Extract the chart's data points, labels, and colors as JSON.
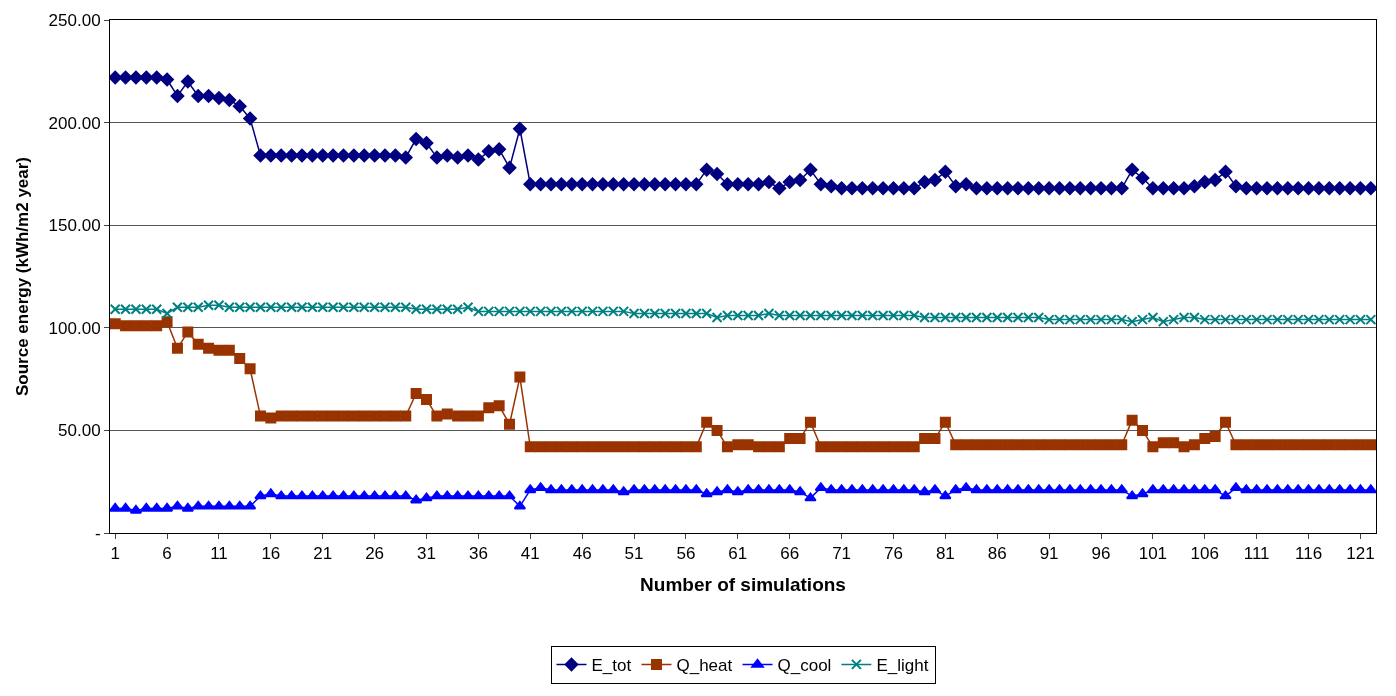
{
  "chart_data": {
    "type": "line",
    "xlabel": "Number of simulations",
    "ylabel": "Source energy (kWh/m2 year)",
    "x": [
      1,
      2,
      3,
      4,
      5,
      6,
      7,
      8,
      9,
      10,
      11,
      12,
      13,
      14,
      15,
      16,
      17,
      18,
      19,
      20,
      21,
      22,
      23,
      24,
      25,
      26,
      27,
      28,
      29,
      30,
      31,
      32,
      33,
      34,
      35,
      36,
      37,
      38,
      39,
      40,
      41,
      42,
      43,
      44,
      45,
      46,
      47,
      48,
      49,
      50,
      51,
      52,
      53,
      54,
      55,
      56,
      57,
      58,
      59,
      60,
      61,
      62,
      63,
      64,
      65,
      66,
      67,
      68,
      69,
      70,
      71,
      72,
      73,
      74,
      75,
      76,
      77,
      78,
      79,
      80,
      81,
      82,
      83,
      84,
      85,
      86,
      87,
      88,
      89,
      90,
      91,
      92,
      93,
      94,
      95,
      96,
      97,
      98,
      99,
      100,
      101,
      102,
      103,
      104,
      105,
      106,
      107,
      108,
      109,
      110,
      111,
      112,
      113,
      114,
      115,
      116,
      117,
      118,
      119,
      120,
      121,
      122
    ],
    "xlim": [
      0.5,
      122.5
    ],
    "xticks": [
      1,
      6,
      11,
      16,
      21,
      26,
      31,
      36,
      41,
      46,
      51,
      56,
      61,
      66,
      71,
      76,
      81,
      86,
      91,
      96,
      101,
      106,
      111,
      116,
      121
    ],
    "ylim": [
      0,
      250
    ],
    "yticks": [
      {
        "value": 0,
        "label": "-"
      },
      {
        "value": 50,
        "label": "50.00"
      },
      {
        "value": 100,
        "label": "100.00"
      },
      {
        "value": 150,
        "label": "150.00"
      },
      {
        "value": 200,
        "label": "200.00"
      },
      {
        "value": 250,
        "label": "250.00"
      }
    ],
    "grid": "y",
    "legend": "bottom",
    "series": [
      {
        "name": "E_tot",
        "color": "#000080",
        "marker": "diamond",
        "values": [
          222,
          222,
          222,
          222,
          222,
          221,
          213,
          220,
          213,
          213,
          212,
          211,
          208,
          202,
          184,
          184,
          184,
          184,
          184,
          184,
          184,
          184,
          184,
          184,
          184,
          184,
          184,
          184,
          183,
          192,
          190,
          183,
          184,
          183,
          184,
          182,
          186,
          187,
          178,
          197,
          170,
          170,
          170,
          170,
          170,
          170,
          170,
          170,
          170,
          170,
          170,
          170,
          170,
          170,
          170,
          170,
          170,
          177,
          175,
          170,
          170,
          170,
          170,
          171,
          168,
          171,
          172,
          177,
          170,
          169,
          168,
          168,
          168,
          168,
          168,
          168,
          168,
          168,
          171,
          172,
          176,
          169,
          170,
          168,
          168,
          168,
          168,
          168,
          168,
          168,
          168,
          168,
          168,
          168,
          168,
          168,
          168,
          168,
          177,
          173,
          168,
          168,
          168,
          168,
          169,
          171,
          172,
          176,
          169,
          168,
          168,
          168,
          168,
          168,
          168,
          168,
          168,
          168,
          168,
          168,
          168,
          168
        ]
      },
      {
        "name": "Q_heat",
        "color": "#993300",
        "marker": "square",
        "values": [
          102,
          101,
          101,
          101,
          101,
          103,
          90,
          98,
          92,
          90,
          89,
          89,
          85,
          80,
          57,
          56,
          57,
          57,
          57,
          57,
          57,
          57,
          57,
          57,
          57,
          57,
          57,
          57,
          57,
          68,
          65,
          57,
          58,
          57,
          57,
          57,
          61,
          62,
          53,
          76,
          42,
          42,
          42,
          42,
          42,
          42,
          42,
          42,
          42,
          42,
          42,
          42,
          42,
          42,
          42,
          42,
          42,
          54,
          50,
          42,
          43,
          43,
          42,
          42,
          42,
          46,
          46,
          54,
          42,
          42,
          42,
          42,
          42,
          42,
          42,
          42,
          42,
          42,
          46,
          46,
          54,
          43,
          43,
          43,
          43,
          43,
          43,
          43,
          43,
          43,
          43,
          43,
          43,
          43,
          43,
          43,
          43,
          43,
          55,
          50,
          42,
          44,
          44,
          42,
          43,
          46,
          47,
          54,
          43,
          43,
          43,
          43,
          43,
          43,
          43,
          43,
          43,
          43,
          43,
          43,
          43,
          43
        ]
      },
      {
        "name": "Q_cool",
        "color": "#0000ff",
        "marker": "triangle",
        "values": [
          12,
          12,
          11,
          12,
          12,
          12,
          13,
          12,
          13,
          13,
          13,
          13,
          13,
          13,
          18,
          19,
          18,
          18,
          18,
          18,
          18,
          18,
          18,
          18,
          18,
          18,
          18,
          18,
          18,
          16,
          17,
          18,
          18,
          18,
          18,
          18,
          18,
          18,
          18,
          13,
          21,
          22,
          21,
          21,
          21,
          21,
          21,
          21,
          21,
          20,
          21,
          21,
          21,
          21,
          21,
          21,
          21,
          19,
          20,
          21,
          20,
          21,
          21,
          21,
          21,
          21,
          20,
          17,
          22,
          21,
          21,
          21,
          21,
          21,
          21,
          21,
          21,
          21,
          20,
          21,
          18,
          21,
          22,
          21,
          21,
          21,
          21,
          21,
          21,
          21,
          21,
          21,
          21,
          21,
          21,
          21,
          21,
          21,
          18,
          19,
          21,
          21,
          21,
          21,
          21,
          21,
          21,
          18,
          22,
          21,
          21,
          21,
          21,
          21,
          21,
          21,
          21,
          21,
          21,
          21,
          21,
          21
        ]
      },
      {
        "name": "E_light",
        "color": "#008080",
        "marker": "cross",
        "values": [
          109,
          109,
          109,
          109,
          109,
          107,
          110,
          110,
          110,
          111,
          111,
          110,
          110,
          110,
          110,
          110,
          110,
          110,
          110,
          110,
          110,
          110,
          110,
          110,
          110,
          110,
          110,
          110,
          110,
          109,
          109,
          109,
          109,
          109,
          110,
          108,
          108,
          108,
          108,
          108,
          108,
          108,
          108,
          108,
          108,
          108,
          108,
          108,
          108,
          108,
          107,
          107,
          107,
          107,
          107,
          107,
          107,
          107,
          105,
          106,
          106,
          106,
          106,
          107,
          106,
          106,
          106,
          106,
          106,
          106,
          106,
          106,
          106,
          106,
          106,
          106,
          106,
          106,
          105,
          105,
          105,
          105,
          105,
          105,
          105,
          105,
          105,
          105,
          105,
          105,
          104,
          104,
          104,
          104,
          104,
          104,
          104,
          104,
          103,
          104,
          105,
          103,
          104,
          105,
          105,
          104,
          104,
          104,
          104,
          104,
          104,
          104,
          104,
          104,
          104,
          104,
          104,
          104,
          104,
          104,
          104,
          104
        ]
      }
    ]
  }
}
